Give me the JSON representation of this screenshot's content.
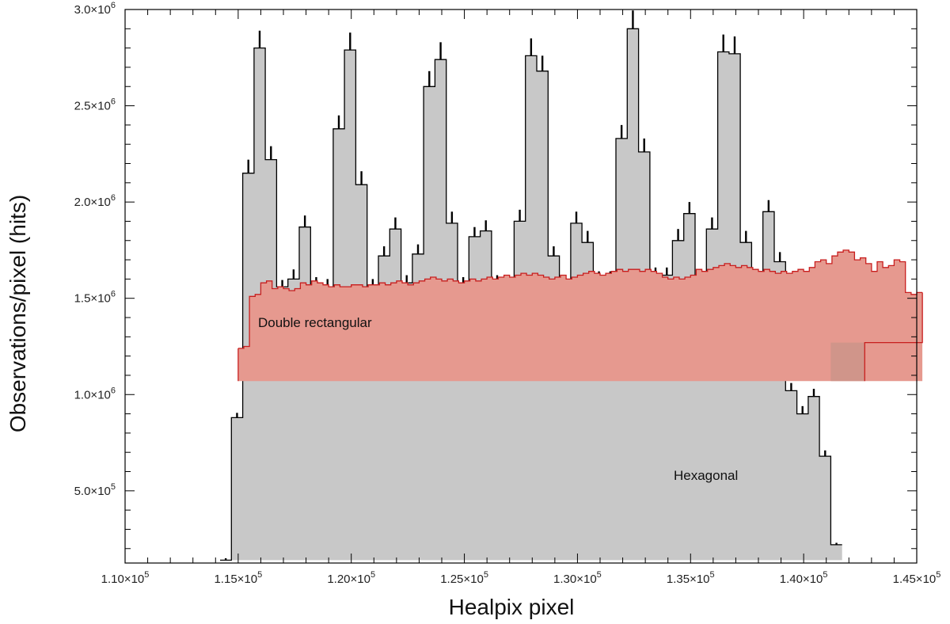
{
  "chart_data": {
    "type": "histogram",
    "xlabel": "Healpix pixel",
    "ylabel": "Observations/pixel (hits)",
    "xlim": [
      110000,
      145000
    ],
    "ylim": [
      125000,
      3000000
    ],
    "x_ticks": [
      {
        "value": 110000,
        "mant": "1.10×10",
        "exp": "5"
      },
      {
        "value": 115000,
        "mant": "1.15×10",
        "exp": "5"
      },
      {
        "value": 120000,
        "mant": "1.20×10",
        "exp": "5"
      },
      {
        "value": 125000,
        "mant": "1.25×10",
        "exp": "5"
      },
      {
        "value": 130000,
        "mant": "1.30×10",
        "exp": "5"
      },
      {
        "value": 135000,
        "mant": "1.35×10",
        "exp": "5"
      },
      {
        "value": 140000,
        "mant": "1.40×10",
        "exp": "5"
      },
      {
        "value": 145000,
        "mant": "1.45×10",
        "exp": "5"
      }
    ],
    "y_ticks": [
      {
        "value": 500000,
        "mant": "5.0×10",
        "exp": "5"
      },
      {
        "value": 1000000,
        "mant": "1.0×10",
        "exp": "6"
      },
      {
        "value": 1500000,
        "mant": "1.5×10",
        "exp": "6"
      },
      {
        "value": 2000000,
        "mant": "2.0×10",
        "exp": "6"
      },
      {
        "value": 2500000,
        "mant": "2.5×10",
        "exp": "6"
      },
      {
        "value": 3000000,
        "mant": "3.0×10",
        "exp": "6"
      }
    ],
    "annotations": {
      "double_rectangular": "Double rectangular",
      "hexagonal": "Hexagonal"
    },
    "colors": {
      "hexagonal_fill": "#c8c8c8",
      "hexagonal_edge": "#000000",
      "double_fill": "#e6998f",
      "double_edge": "#c81e1e",
      "double_end_fill": "#d0958a"
    },
    "series": [
      {
        "name": "Hexagonal",
        "bin_start": 114200,
        "bin_width": 500,
        "baseline": 140000,
        "values": [
          140000,
          880000,
          2150000,
          2800000,
          2220000,
          1560000,
          1600000,
          1870000,
          1570000,
          1560000,
          2380000,
          2790000,
          2090000,
          1560000,
          1720000,
          1860000,
          1580000,
          1730000,
          2600000,
          2740000,
          1890000,
          1570000,
          1820000,
          1850000,
          1580000,
          1580000,
          1900000,
          2760000,
          2680000,
          1720000,
          1570000,
          1890000,
          1790000,
          1600000,
          1600000,
          2330000,
          2900000,
          2260000,
          1620000,
          1620000,
          1800000,
          1940000,
          1600000,
          1860000,
          2780000,
          2770000,
          1790000,
          1590000,
          1950000,
          1690000,
          1020000,
          900000,
          990000,
          680000,
          220000
        ],
        "errors": [
          10000,
          25000,
          70000,
          90000,
          70000,
          35000,
          50000,
          60000,
          40000,
          40000,
          70000,
          90000,
          70000,
          40000,
          50000,
          60000,
          40000,
          50000,
          80000,
          90000,
          60000,
          40000,
          50000,
          55000,
          40000,
          40000,
          60000,
          90000,
          80000,
          50000,
          40000,
          60000,
          60000,
          40000,
          40000,
          70000,
          95000,
          70000,
          40000,
          40000,
          60000,
          60000,
          40000,
          60000,
          90000,
          90000,
          60000,
          40000,
          60000,
          50000,
          40000,
          40000,
          40000,
          30000,
          10000
        ]
      },
      {
        "name": "Double rectangular",
        "bin_start": 115000,
        "bin_width": 250,
        "baseline": 1070000,
        "end_block": {
          "x0": 141200,
          "x1": 142700,
          "value": 1270000
        },
        "values": [
          1240000,
          1250000,
          1510000,
          1520000,
          1580000,
          1590000,
          1550000,
          1560000,
          1550000,
          1540000,
          1550000,
          1580000,
          1570000,
          1590000,
          1580000,
          1570000,
          1560000,
          1570000,
          1560000,
          1560000,
          1570000,
          1570000,
          1560000,
          1570000,
          1570000,
          1580000,
          1570000,
          1580000,
          1590000,
          1580000,
          1570000,
          1580000,
          1590000,
          1600000,
          1610000,
          1600000,
          1590000,
          1600000,
          1590000,
          1580000,
          1590000,
          1600000,
          1590000,
          1600000,
          1610000,
          1600000,
          1610000,
          1620000,
          1610000,
          1620000,
          1630000,
          1620000,
          1630000,
          1620000,
          1610000,
          1600000,
          1610000,
          1620000,
          1600000,
          1610000,
          1620000,
          1630000,
          1640000,
          1630000,
          1620000,
          1630000,
          1640000,
          1650000,
          1640000,
          1650000,
          1650000,
          1640000,
          1650000,
          1640000,
          1630000,
          1610000,
          1600000,
          1610000,
          1600000,
          1610000,
          1620000,
          1650000,
          1640000,
          1650000,
          1660000,
          1670000,
          1680000,
          1670000,
          1660000,
          1670000,
          1660000,
          1650000,
          1640000,
          1650000,
          1640000,
          1630000,
          1640000,
          1630000,
          1640000,
          1650000,
          1640000,
          1660000,
          1690000,
          1700000,
          1680000,
          1720000,
          1740000,
          1750000,
          1740000,
          1700000,
          1710000,
          1680000,
          1640000,
          1690000,
          1660000,
          1670000,
          1700000,
          1690000,
          1530000,
          1520000,
          1530000
        ]
      }
    ]
  }
}
